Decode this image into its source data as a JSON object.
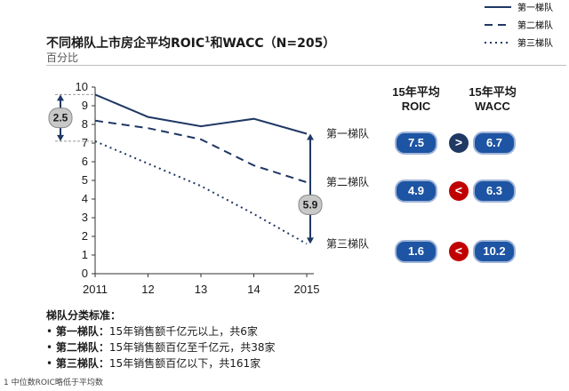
{
  "title": {
    "main": "不同梯队上市房企平均ROIC",
    "sup": "1",
    "rest": "和WACC（N=205）"
  },
  "subtitle": "百分比",
  "legend": [
    {
      "label": "第一梯队",
      "style": "solid"
    },
    {
      "label": "第二梯队",
      "style": "dashed"
    },
    {
      "label": "第三梯队",
      "style": "dotted"
    }
  ],
  "colors": {
    "series": "#1f3864",
    "pill": "#1d54a4",
    "greater": "#1f3864",
    "less": "#c00000",
    "gap_badge": "#c8c8c8"
  },
  "chart_data": {
    "type": "line",
    "title": "不同梯队上市房企平均ROIC1和WACC（N=205）",
    "ylabel": "百分比",
    "x": [
      "2011",
      "12",
      "13",
      "14",
      "2015"
    ],
    "ylim": [
      0,
      10
    ],
    "yticks": [
      "0",
      "1",
      "2",
      "3",
      "4",
      "5",
      "6",
      "7",
      "8",
      "9",
      "10"
    ],
    "grid": false,
    "series": [
      {
        "name": "第一梯队",
        "style": "solid",
        "values": [
          9.6,
          8.4,
          7.9,
          8.3,
          7.5
        ]
      },
      {
        "name": "第二梯队",
        "style": "dashed",
        "values": [
          8.2,
          7.8,
          7.2,
          5.8,
          4.9
        ]
      },
      {
        "name": "第三梯队",
        "style": "dotted",
        "values": [
          7.1,
          5.9,
          4.7,
          3.2,
          1.6
        ]
      }
    ],
    "annotations": {
      "gap_2011": "2.5",
      "gap_2015": "5.9"
    }
  },
  "table": {
    "roic_header": "15年平均\nROIC",
    "wacc_header": "15年平均\nWACC",
    "rows": [
      {
        "roic": "7.5",
        "cmp": ">",
        "wacc": "6.7"
      },
      {
        "roic": "4.9",
        "cmp": "<",
        "wacc": "6.3"
      },
      {
        "roic": "1.6",
        "cmp": "<",
        "wacc": "10.2"
      }
    ]
  },
  "notes": {
    "title": "梯队分类标准：",
    "items": [
      {
        "bullet": "•",
        "tier": "第一梯队：",
        "text": "15年销售额千亿元以上，共6家"
      },
      {
        "bullet": "•",
        "tier": "第二梯队：",
        "text": "15年销售额百亿至千亿元，共38家"
      },
      {
        "bullet": "•",
        "tier": "第三梯队：",
        "text": "15年销售额百亿以下，共161家"
      }
    ]
  },
  "footnote": "1 中位数ROIC略低于平均数"
}
